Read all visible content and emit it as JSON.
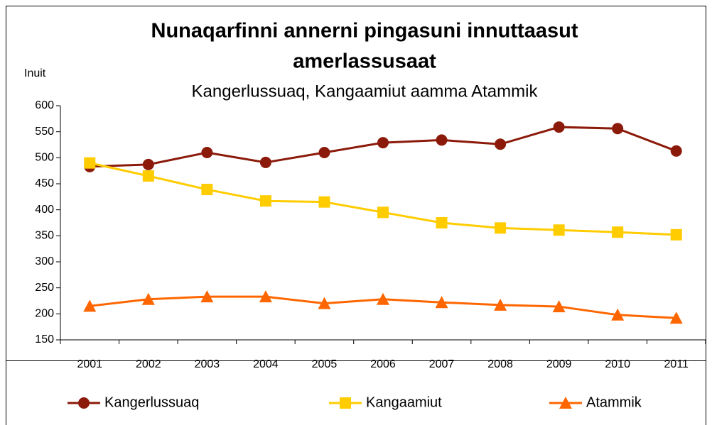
{
  "chart_data": {
    "type": "line",
    "title": [
      "Nunaqarfinni annerni pingasuni innuttaasut",
      "amerlassusaat"
    ],
    "subtitle": "Kangerlussuaq, Kangaamiut aamma Atammik",
    "y_label": "Inuit",
    "categories": [
      "2001",
      "2002",
      "2003",
      "2004",
      "2005",
      "2006",
      "2007",
      "2008",
      "2009",
      "2010",
      "2011"
    ],
    "series": [
      {
        "name": "Kangerlussuaq",
        "color": "#8b1a0a",
        "marker": "circle",
        "values": [
          483,
          487,
          510,
          491,
          510,
          529,
          534,
          526,
          559,
          556,
          513
        ]
      },
      {
        "name": "Kangaamiut",
        "color": "#ffcc00",
        "marker": "square",
        "values": [
          490,
          465,
          439,
          417,
          415,
          395,
          375,
          365,
          361,
          357,
          352
        ]
      },
      {
        "name": "Atammik",
        "color": "#ff6600",
        "marker": "triangle",
        "values": [
          215,
          228,
          233,
          233,
          220,
          228,
          222,
          217,
          214,
          198,
          192
        ]
      }
    ],
    "ylim": [
      150,
      600
    ],
    "yticks": [
      150,
      200,
      250,
      300,
      350,
      400,
      450,
      500,
      550,
      600
    ],
    "grid": false,
    "legend": "bottom"
  }
}
